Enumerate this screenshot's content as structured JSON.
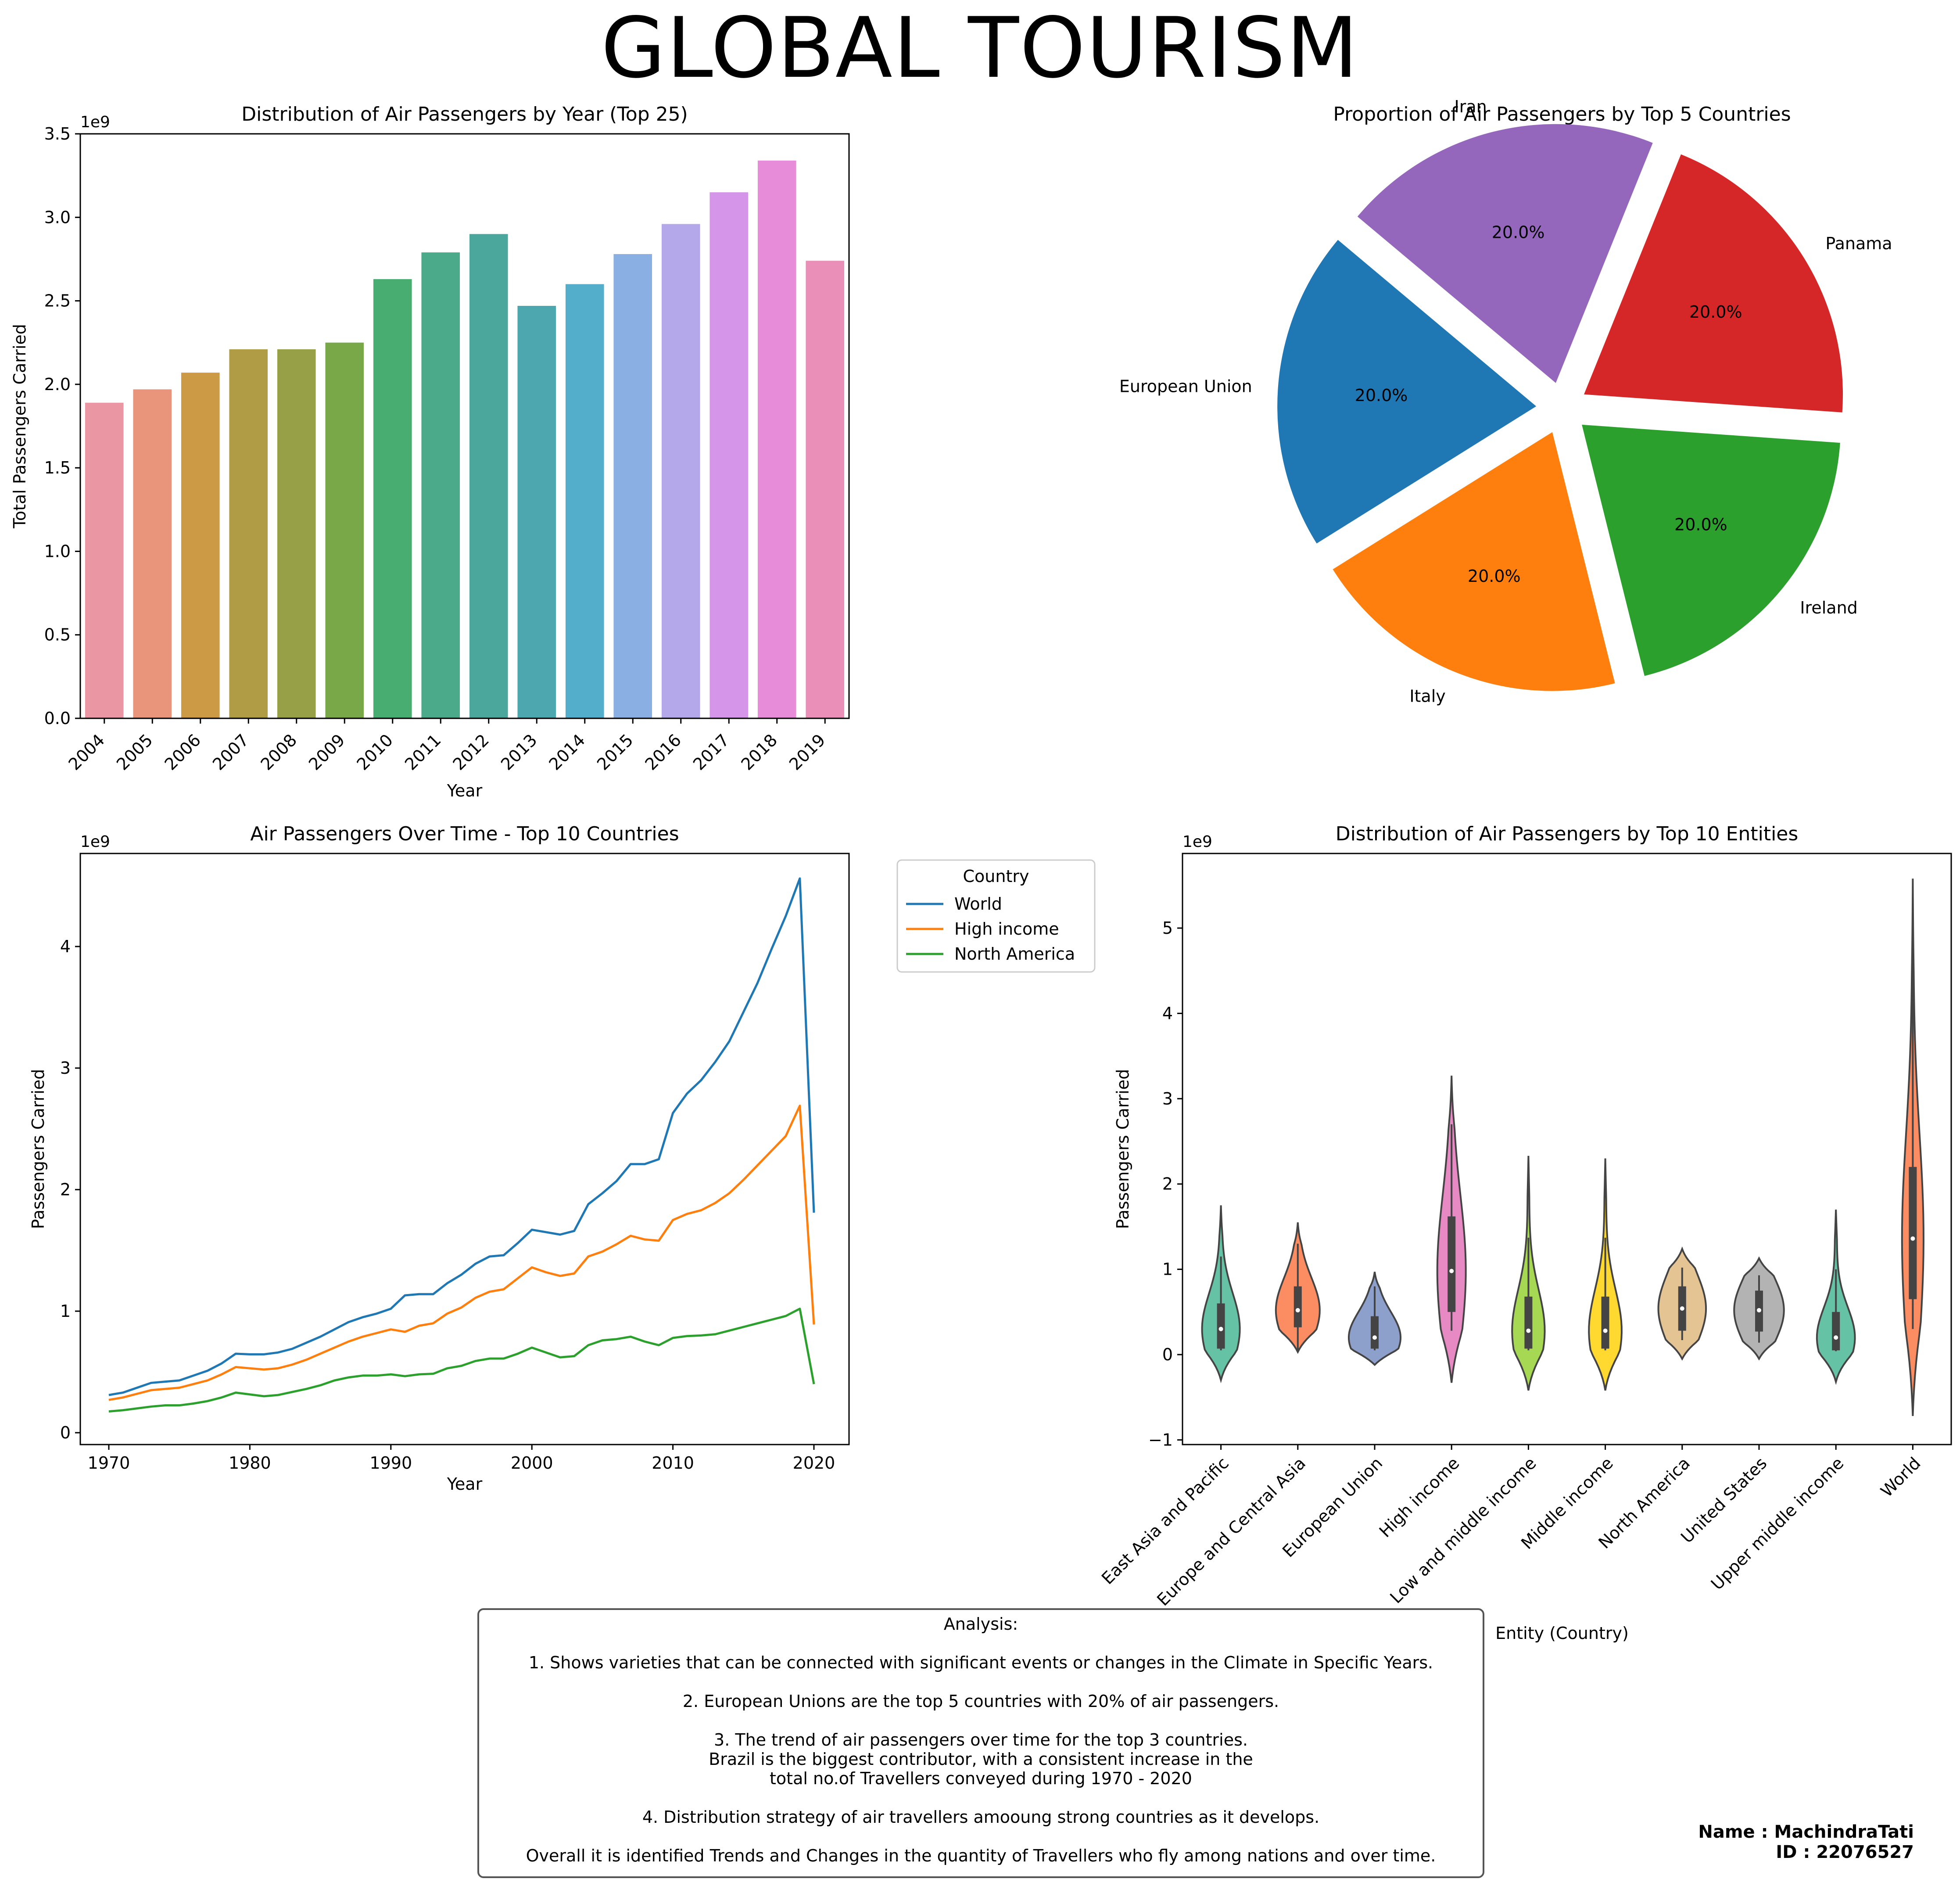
{
  "page_title": "GLOBAL TOURISM",
  "chart_data": [
    {
      "type": "bar",
      "title": "Distribution of Air Passengers by Year (Top 25)",
      "xlabel": "Year",
      "ylabel": "Total Passengers Carried",
      "offset_text": "1e9",
      "categories": [
        "2004",
        "2005",
        "2006",
        "2007",
        "2008",
        "2009",
        "2010",
        "2011",
        "2012",
        "2013",
        "2014",
        "2015",
        "2016",
        "2017",
        "2018",
        "2019"
      ],
      "values": [
        1890000000.0,
        1970000000.0,
        2070000000.0,
        2210000000.0,
        2210000000.0,
        2250000000.0,
        2630000000.0,
        2790000000.0,
        2900000000.0,
        2470000000.0,
        2600000000.0,
        2780000000.0,
        2960000000.0,
        3150000000.0,
        3340000000.0,
        2740000000.0
      ],
      "colors": [
        "#ea96a3",
        "#e8957c",
        "#cc9a44",
        "#b09c44",
        "#97a046",
        "#78a848",
        "#48ad70",
        "#4aaa8a",
        "#4ba69c",
        "#4da7ae",
        "#52aecb",
        "#8aafe3",
        "#b4a8ea",
        "#d595e8",
        "#e68cd9",
        "#ea8fb8"
      ],
      "yticks": [
        "0.0",
        "0.5",
        "1.0",
        "1.5",
        "2.0",
        "2.5",
        "3.0",
        "3.5"
      ],
      "ylim": [
        0,
        3500000000.0
      ]
    },
    {
      "type": "pie",
      "title": "Proportion of Air Passengers by Top 5 Countries",
      "labels": [
        "European Union",
        "Italy",
        "Ireland",
        "Panama",
        "Iran"
      ],
      "values": [
        20.0,
        20.0,
        20.0,
        20.0,
        20.0
      ],
      "pct_labels": [
        "20.0%",
        "20.0%",
        "20.0%",
        "20.0%",
        "20.0%"
      ],
      "colors": [
        "#1f77b4",
        "#ff7f0e",
        "#2ca02c",
        "#d62728",
        "#9467bd"
      ]
    },
    {
      "type": "line",
      "title": "Air Passengers Over Time - Top 10 Countries",
      "xlabel": "Year",
      "ylabel": "Passengers Carried",
      "offset_text": "1e9",
      "legend_title": "Country",
      "legend_position": "outside upper right",
      "x": [
        1970,
        1971,
        1972,
        1973,
        1974,
        1975,
        1976,
        1977,
        1978,
        1979,
        1980,
        1981,
        1982,
        1983,
        1984,
        1985,
        1986,
        1987,
        1988,
        1989,
        1990,
        1991,
        1992,
        1993,
        1994,
        1995,
        1996,
        1997,
        1998,
        1999,
        2000,
        2001,
        2002,
        2003,
        2004,
        2005,
        2006,
        2007,
        2008,
        2009,
        2010,
        2011,
        2012,
        2013,
        2014,
        2015,
        2016,
        2017,
        2018,
        2019,
        2020
      ],
      "series": [
        {
          "name": "World",
          "color": "#1f77b4",
          "values": [
            0.31,
            0.33,
            0.37,
            0.41,
            0.42,
            0.43,
            0.47,
            0.51,
            0.57,
            0.65,
            0.645,
            0.645,
            0.66,
            0.69,
            0.74,
            0.79,
            0.85,
            0.91,
            0.95,
            0.98,
            1.02,
            1.13,
            1.14,
            1.14,
            1.23,
            1.3,
            1.39,
            1.45,
            1.46,
            1.56,
            1.67,
            1.65,
            1.63,
            1.66,
            1.88,
            1.97,
            2.07,
            2.21,
            2.21,
            2.25,
            2.63,
            2.79,
            2.9,
            3.05,
            3.22,
            3.46,
            3.7,
            3.98,
            4.25,
            4.56,
            1.81
          ]
        },
        {
          "name": "High income",
          "color": "#ff7f0e",
          "values": [
            0.27,
            0.29,
            0.32,
            0.35,
            0.36,
            0.37,
            0.4,
            0.43,
            0.48,
            0.54,
            0.53,
            0.52,
            0.53,
            0.56,
            0.6,
            0.65,
            0.7,
            0.75,
            0.79,
            0.82,
            0.85,
            0.83,
            0.88,
            0.9,
            0.98,
            1.03,
            1.11,
            1.16,
            1.18,
            1.27,
            1.36,
            1.32,
            1.29,
            1.31,
            1.45,
            1.49,
            1.55,
            1.62,
            1.59,
            1.58,
            1.75,
            1.8,
            1.83,
            1.89,
            1.97,
            2.08,
            2.2,
            2.32,
            2.44,
            2.69,
            0.89
          ]
        },
        {
          "name": "North America",
          "color": "#2ca02c",
          "values": [
            0.175,
            0.185,
            0.2,
            0.215,
            0.225,
            0.225,
            0.24,
            0.26,
            0.29,
            0.33,
            0.315,
            0.3,
            0.31,
            0.335,
            0.36,
            0.39,
            0.43,
            0.455,
            0.47,
            0.47,
            0.48,
            0.465,
            0.48,
            0.485,
            0.53,
            0.55,
            0.59,
            0.61,
            0.61,
            0.65,
            0.7,
            0.66,
            0.62,
            0.63,
            0.72,
            0.76,
            0.77,
            0.79,
            0.75,
            0.72,
            0.78,
            0.795,
            0.8,
            0.81,
            0.84,
            0.87,
            0.9,
            0.93,
            0.96,
            1.02,
            0.4
          ]
        }
      ],
      "yticks": [
        "0",
        "1",
        "2",
        "3",
        "4"
      ],
      "xticks": [
        "1970",
        "1980",
        "1990",
        "2000",
        "2010",
        "2020"
      ]
    },
    {
      "type": "violin",
      "title": "Distribution of Air Passengers by Top 10 Entities",
      "xlabel": "Entity (Country)",
      "ylabel": "Passengers Carried",
      "offset_text": "1e9",
      "categories": [
        "East Asia and Pacific",
        "Europe and Central Asia",
        "European Union",
        "High income",
        "Low and middle income",
        "Middle income",
        "North America",
        "United States",
        "Upper middle income",
        "World"
      ],
      "colors": [
        "#66c2a5",
        "#fc8d62",
        "#8da0cb",
        "#e78ac3",
        "#a6d854",
        "#ffd92f",
        "#e5c494",
        "#b3b3b3",
        "#66c2a5",
        "#fc8d62"
      ],
      "distributions": [
        {
          "min": -0.3,
          "max": 1.75,
          "q1": 0.07,
          "median": 0.3,
          "q3": 0.6,
          "wlo": 0.05,
          "whi": 1.15
        },
        {
          "min": 0.03,
          "max": 1.55,
          "q1": 0.32,
          "median": 0.52,
          "q3": 0.8,
          "wlo": 0.05,
          "whi": 1.3
        },
        {
          "min": -0.12,
          "max": 0.97,
          "q1": 0.07,
          "median": 0.2,
          "q3": 0.45,
          "wlo": 0.05,
          "whi": 0.8
        },
        {
          "min": -0.33,
          "max": 3.27,
          "q1": 0.5,
          "median": 0.98,
          "q3": 1.62,
          "wlo": 0.28,
          "whi": 2.7
        },
        {
          "min": -0.42,
          "max": 2.33,
          "q1": 0.07,
          "median": 0.28,
          "q3": 0.68,
          "wlo": 0.05,
          "whi": 1.37
        },
        {
          "min": -0.42,
          "max": 2.3,
          "q1": 0.07,
          "median": 0.28,
          "q3": 0.68,
          "wlo": 0.05,
          "whi": 1.37
        },
        {
          "min": -0.05,
          "max": 1.24,
          "q1": 0.28,
          "median": 0.54,
          "q3": 0.8,
          "wlo": 0.17,
          "whi": 1.02
        },
        {
          "min": -0.05,
          "max": 1.13,
          "q1": 0.27,
          "median": 0.52,
          "q3": 0.75,
          "wlo": 0.14,
          "whi": 0.93
        },
        {
          "min": -0.32,
          "max": 1.7,
          "q1": 0.05,
          "median": 0.2,
          "q3": 0.5,
          "wlo": 0.04,
          "whi": 1.0
        },
        {
          "min": -0.72,
          "max": 5.58,
          "q1": 0.65,
          "median": 1.36,
          "q3": 2.2,
          "wlo": 0.3,
          "whi": 4.56
        }
      ],
      "yticks": [
        "−1",
        "0",
        "1",
        "2",
        "3",
        "4",
        "5"
      ],
      "ylim": [
        -1.0,
        5.6
      ]
    }
  ],
  "analysis": {
    "title": "Analysis:",
    "items": [
      "1. Shows varieties that can be connected with significant events or changes in the Climate in Specific Years.",
      "2. European Unions are the top 5 countries with 20% of air passengers.",
      "3. The trend of air passengers over time for the top 3 countries.",
      "Brazil is the biggest contributor, with a consistent increase in the",
      "total no.of Travellers conveyed during 1970 - 2020",
      "4. Distribution strategy of air travellers amooung strong countries as it develops.",
      "Overall it is identified Trends and Changes in the quantity of Travellers who fly among nations and over time."
    ]
  },
  "author": {
    "name_line": "Name : MachindraTati",
    "id_line": "ID : 22076527"
  }
}
